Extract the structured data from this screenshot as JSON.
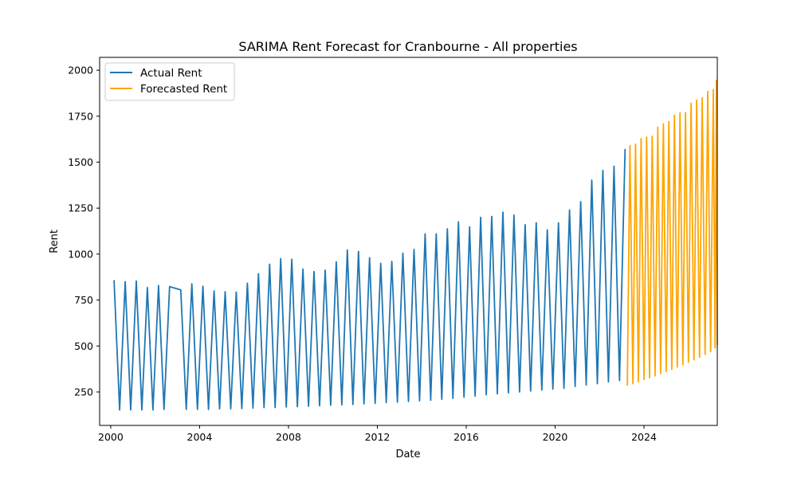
{
  "chart_data": {
    "type": "line",
    "title": "SARIMA Rent Forecast for Cranbourne - All properties",
    "xlabel": "Date",
    "ylabel": "Rent",
    "xlim": [
      1999.5,
      2027.3
    ],
    "ylim": [
      68,
      2070
    ],
    "x_ticks": [
      {
        "value": 2000,
        "label": "2000"
      },
      {
        "value": 2004,
        "label": "2004"
      },
      {
        "value": 2008,
        "label": "2008"
      },
      {
        "value": 2012,
        "label": "2012"
      },
      {
        "value": 2016,
        "label": "2016"
      },
      {
        "value": 2020,
        "label": "2020"
      },
      {
        "value": 2024,
        "label": "2024"
      }
    ],
    "y_ticks": [
      {
        "value": 250,
        "label": "250"
      },
      {
        "value": 500,
        "label": "500"
      },
      {
        "value": 750,
        "label": "750"
      },
      {
        "value": 1000,
        "label": "1000"
      },
      {
        "value": 1250,
        "label": "1250"
      },
      {
        "value": 1500,
        "label": "1500"
      },
      {
        "value": 1750,
        "label": "1750"
      },
      {
        "value": 2000,
        "label": "2000"
      }
    ],
    "grid": false,
    "legend_position": "upper-left",
    "colors": {
      "actual": "#1f77b4",
      "forecast": "#ffa500"
    },
    "series": [
      {
        "name": "Actual Rent",
        "points": [
          [
            2000.15,
            858
          ],
          [
            2000.4,
            152
          ],
          [
            2000.65,
            850
          ],
          [
            2000.9,
            152
          ],
          [
            2001.15,
            853
          ],
          [
            2001.4,
            152
          ],
          [
            2001.65,
            818
          ],
          [
            2001.9,
            152
          ],
          [
            2002.15,
            829
          ],
          [
            2002.4,
            155
          ],
          [
            2002.65,
            823
          ],
          [
            2003.15,
            805
          ],
          [
            2003.4,
            155
          ],
          [
            2003.65,
            838
          ],
          [
            2003.9,
            155
          ],
          [
            2004.15,
            825
          ],
          [
            2004.4,
            155
          ],
          [
            2004.65,
            800
          ],
          [
            2004.9,
            158
          ],
          [
            2005.15,
            795
          ],
          [
            2005.4,
            158
          ],
          [
            2005.65,
            793
          ],
          [
            2005.9,
            160
          ],
          [
            2006.15,
            842
          ],
          [
            2006.4,
            162
          ],
          [
            2006.65,
            893
          ],
          [
            2006.9,
            165
          ],
          [
            2007.15,
            945
          ],
          [
            2007.4,
            165
          ],
          [
            2007.65,
            975
          ],
          [
            2007.9,
            168
          ],
          [
            2008.15,
            972
          ],
          [
            2008.4,
            170
          ],
          [
            2008.65,
            918
          ],
          [
            2008.9,
            172
          ],
          [
            2009.15,
            905
          ],
          [
            2009.4,
            175
          ],
          [
            2009.65,
            913
          ],
          [
            2009.9,
            178
          ],
          [
            2010.15,
            958
          ],
          [
            2010.4,
            180
          ],
          [
            2010.65,
            1022
          ],
          [
            2010.9,
            182
          ],
          [
            2011.15,
            1015
          ],
          [
            2011.4,
            185
          ],
          [
            2011.65,
            980
          ],
          [
            2011.9,
            188
          ],
          [
            2012.15,
            950
          ],
          [
            2012.4,
            192
          ],
          [
            2012.65,
            960
          ],
          [
            2012.9,
            195
          ],
          [
            2013.15,
            1005
          ],
          [
            2013.4,
            198
          ],
          [
            2013.65,
            1025
          ],
          [
            2013.9,
            202
          ],
          [
            2014.15,
            1110
          ],
          [
            2014.4,
            205
          ],
          [
            2014.65,
            1110
          ],
          [
            2014.9,
            210
          ],
          [
            2015.15,
            1138
          ],
          [
            2015.4,
            215
          ],
          [
            2015.65,
            1175
          ],
          [
            2015.9,
            222
          ],
          [
            2016.15,
            1148
          ],
          [
            2016.4,
            228
          ],
          [
            2016.65,
            1200
          ],
          [
            2016.9,
            235
          ],
          [
            2017.15,
            1205
          ],
          [
            2017.4,
            240
          ],
          [
            2017.65,
            1228
          ],
          [
            2017.9,
            245
          ],
          [
            2018.15,
            1212
          ],
          [
            2018.4,
            250
          ],
          [
            2018.65,
            1160
          ],
          [
            2018.9,
            255
          ],
          [
            2019.15,
            1170
          ],
          [
            2019.4,
            260
          ],
          [
            2019.65,
            1132
          ],
          [
            2019.9,
            265
          ],
          [
            2020.15,
            1170
          ],
          [
            2020.4,
            270
          ],
          [
            2020.65,
            1240
          ],
          [
            2020.9,
            280
          ],
          [
            2021.15,
            1285
          ],
          [
            2021.4,
            288
          ],
          [
            2021.65,
            1402
          ],
          [
            2021.9,
            295
          ],
          [
            2022.15,
            1455
          ],
          [
            2022.4,
            305
          ],
          [
            2022.65,
            1478
          ],
          [
            2022.9,
            312
          ],
          [
            2023.15,
            1572
          ]
        ]
      },
      {
        "name": "Forecasted Rent",
        "points": [
          [
            2023.25,
            285
          ],
          [
            2023.37,
            1590
          ],
          [
            2023.5,
            295
          ],
          [
            2023.62,
            1598
          ],
          [
            2023.75,
            305
          ],
          [
            2023.87,
            1628
          ],
          [
            2024.0,
            318
          ],
          [
            2024.12,
            1636
          ],
          [
            2024.25,
            328
          ],
          [
            2024.37,
            1640
          ],
          [
            2024.5,
            338
          ],
          [
            2024.62,
            1690
          ],
          [
            2024.75,
            350
          ],
          [
            2024.87,
            1708
          ],
          [
            2025.0,
            362
          ],
          [
            2025.12,
            1720
          ],
          [
            2025.25,
            372
          ],
          [
            2025.37,
            1755
          ],
          [
            2025.5,
            385
          ],
          [
            2025.62,
            1768
          ],
          [
            2025.75,
            398
          ],
          [
            2025.87,
            1770
          ],
          [
            2026.0,
            412
          ],
          [
            2026.12,
            1820
          ],
          [
            2026.25,
            425
          ],
          [
            2026.37,
            1838
          ],
          [
            2026.5,
            440
          ],
          [
            2026.62,
            1850
          ],
          [
            2026.75,
            455
          ],
          [
            2026.87,
            1885
          ],
          [
            2027.0,
            470
          ],
          [
            2027.12,
            1895
          ],
          [
            2027.2,
            490
          ],
          [
            2027.26,
            1945
          ],
          [
            2027.3,
            505
          ]
        ]
      }
    ]
  }
}
